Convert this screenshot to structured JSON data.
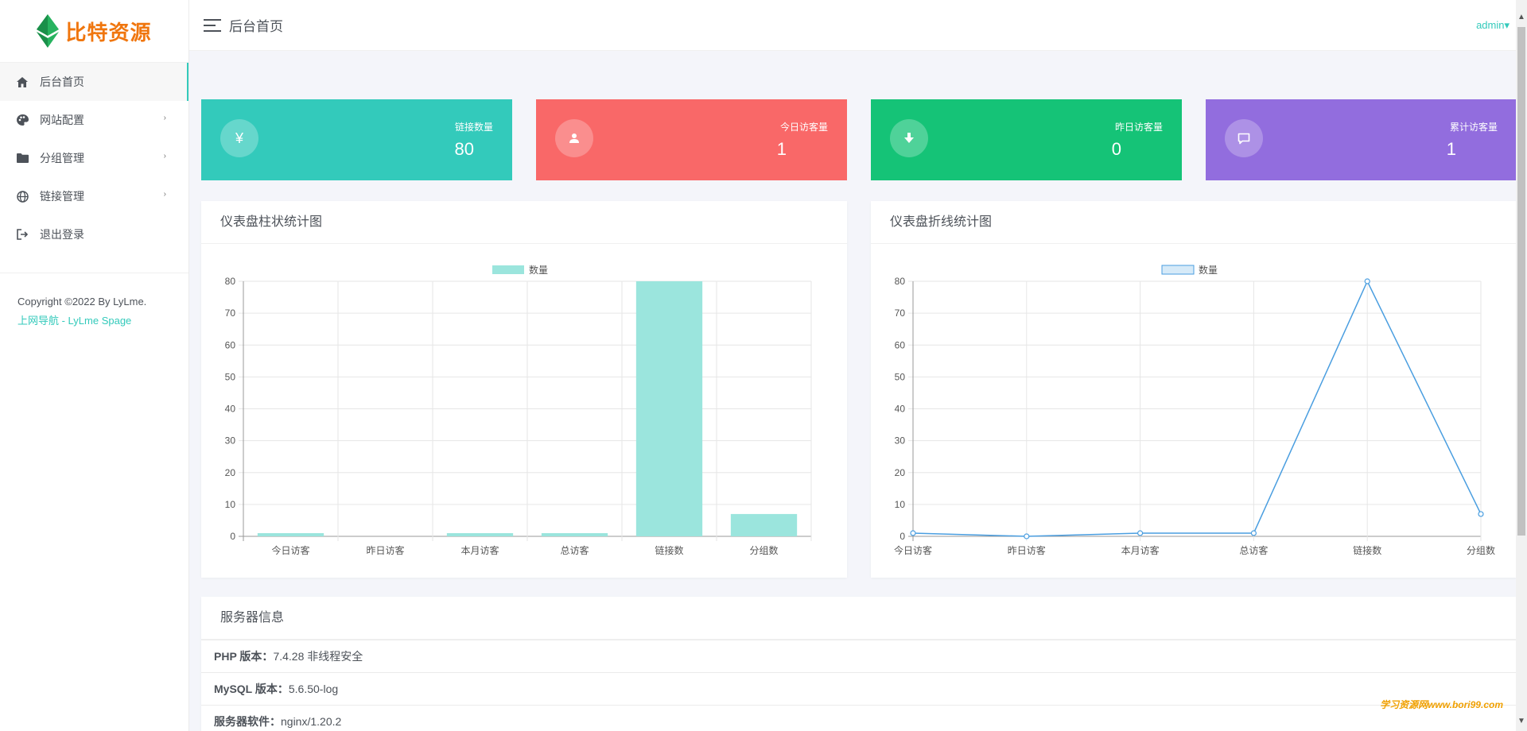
{
  "brand": {
    "name": "比特资源",
    "logo_color": "#1fa05a",
    "accent": "#33cabb"
  },
  "header": {
    "page_title": "后台首页",
    "user": "admin▾"
  },
  "sidebar": {
    "items": [
      {
        "label": "后台首页",
        "icon": "home-icon",
        "active": true
      },
      {
        "label": "网站配置",
        "icon": "palette-icon",
        "has_submenu": true
      },
      {
        "label": "分组管理",
        "icon": "folder-icon",
        "has_submenu": true
      },
      {
        "label": "链接管理",
        "icon": "globe-icon",
        "has_submenu": true
      },
      {
        "label": "退出登录",
        "icon": "logout-icon"
      }
    ],
    "copyright": "Copyright ©2022 By LyLme.",
    "footer_link": "上网导航 - LyLme Spage"
  },
  "stats": [
    {
      "label": "链接数量",
      "value": "80",
      "icon": "yen-icon",
      "color": "#33cabb"
    },
    {
      "label": "今日访客量",
      "value": "1",
      "icon": "user-icon",
      "color": "#f96868"
    },
    {
      "label": "昨日访客量",
      "value": "0",
      "icon": "download-icon",
      "color": "#15c377"
    },
    {
      "label": "累计访客量",
      "value": "1",
      "icon": "comment-icon",
      "color": "#926dde"
    }
  ],
  "bar_panel": {
    "title": "仪表盘柱状统计图"
  },
  "line_panel": {
    "title": "仪表盘折线统计图"
  },
  "chart_data": [
    {
      "type": "bar",
      "title": "仪表盘柱状统计图",
      "categories": [
        "今日访客",
        "昨日访客",
        "本月访客",
        "总访客",
        "链接数",
        "分组数"
      ],
      "series": [
        {
          "name": "数量",
          "values": [
            1,
            0,
            1,
            1,
            80,
            7
          ],
          "color": "#9be5dd"
        }
      ],
      "ylim": [
        0,
        80
      ],
      "yticks": [
        0,
        10,
        20,
        30,
        40,
        50,
        60,
        70,
        80
      ],
      "legend": "top-center",
      "grid": true
    },
    {
      "type": "line",
      "title": "仪表盘折线统计图",
      "categories": [
        "今日访客",
        "昨日访客",
        "本月访客",
        "总访客",
        "链接数",
        "分组数"
      ],
      "series": [
        {
          "name": "数量",
          "values": [
            1,
            0,
            1,
            1,
            80,
            7
          ],
          "color": "#4a9ee0"
        }
      ],
      "ylim": [
        0,
        80
      ],
      "yticks": [
        0,
        10,
        20,
        30,
        40,
        50,
        60,
        70,
        80
      ],
      "legend": "top-center",
      "grid": true
    }
  ],
  "server_info": {
    "title": "服务器信息",
    "rows": [
      {
        "label": "PHP 版本：",
        "value": "7.4.28 非线程安全"
      },
      {
        "label": "MySQL 版本：",
        "value": "5.6.50-log"
      },
      {
        "label": "服务器软件：",
        "value": "nginx/1.20.2"
      }
    ]
  },
  "watermark": "学习资源网www.bori99.com"
}
